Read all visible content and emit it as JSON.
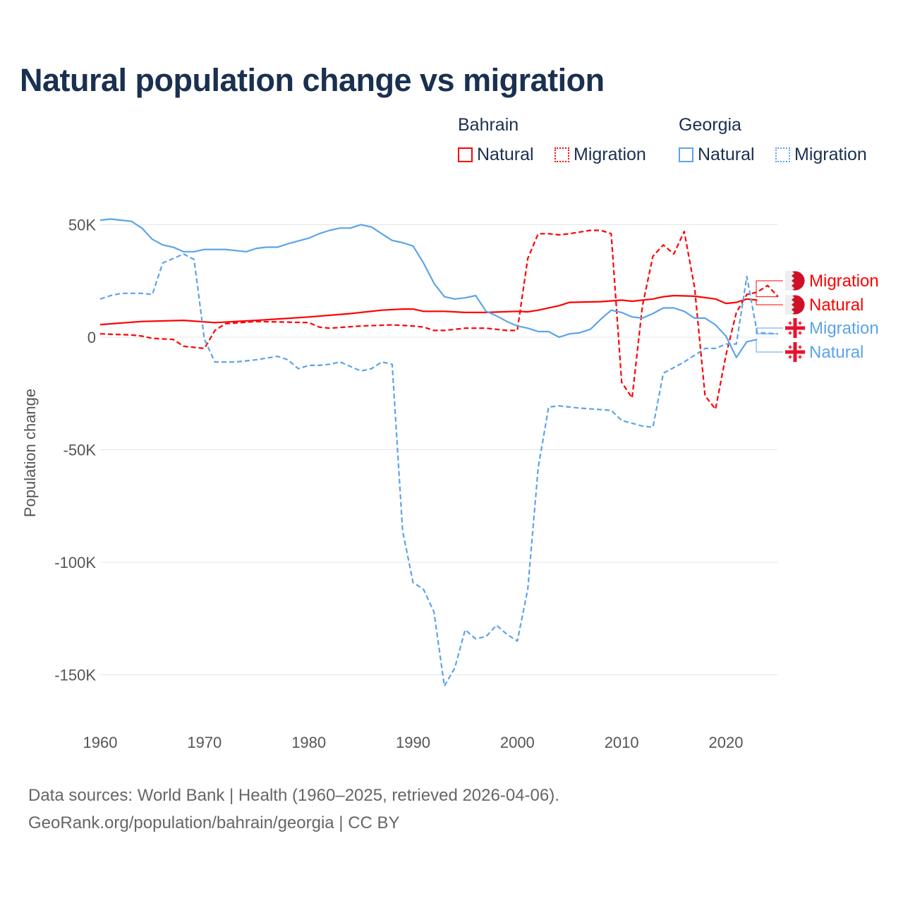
{
  "colors": {
    "bahrain": "#ff0000",
    "georgia": "#5ba4ea",
    "title": "#1a3050",
    "grid": "#e5e5e5"
  },
  "chart_data": {
    "type": "line",
    "title": "Natural population change vs migration",
    "xlabel": "",
    "ylabel": "Population change",
    "xlim": [
      1960,
      2025
    ],
    "ylim": [
      -165000,
      55000
    ],
    "x_ticks": [
      1960,
      1970,
      1980,
      1990,
      2000,
      2010,
      2020
    ],
    "x_tick_labels": [
      "1960",
      "1970",
      "1980",
      "1990",
      "2000",
      "2010",
      "2020"
    ],
    "y_ticks": [
      50000,
      0,
      -50000,
      -100000,
      -150000
    ],
    "y_tick_labels": [
      "50K",
      "0",
      "-50K",
      "-100K",
      "-150K"
    ],
    "grid": true,
    "legend": {
      "placement": "top-right",
      "groups": [
        {
          "name": "Bahrain",
          "items": [
            "Natural",
            "Migration"
          ]
        },
        {
          "name": "Georgia",
          "items": [
            "Natural",
            "Migration"
          ]
        }
      ]
    },
    "series": [
      {
        "name": "Migration",
        "country": "Bahrain",
        "flag": "bahrain-flag",
        "color": "#ff0000",
        "dash": true,
        "x": [
          1960,
          1963,
          1964,
          1965,
          1967,
          1968,
          1969,
          1970,
          1971,
          1972,
          1975,
          1980,
          1981,
          1982,
          1985,
          1988,
          1990,
          1991,
          1992,
          1993,
          1995,
          1997,
          1999,
          2000,
          2001,
          2002,
          2003,
          2004,
          2005,
          2007,
          2008,
          2009,
          2010,
          2011,
          2012,
          2013,
          2014,
          2015,
          2016,
          2017,
          2018,
          2019,
          2020,
          2021,
          2022,
          2023,
          2024,
          2025
        ],
        "y": [
          1500,
          1000,
          500,
          -500,
          -1000,
          -4000,
          -4500,
          -5000,
          3000,
          6000,
          7000,
          6500,
          4500,
          4000,
          5000,
          5500,
          5000,
          4500,
          3000,
          3000,
          4000,
          4000,
          3000,
          3000,
          35000,
          46000,
          46000,
          45500,
          46000,
          47500,
          47500,
          46000,
          -20000,
          -27000,
          14000,
          36000,
          41000,
          37000,
          47000,
          22000,
          -26000,
          -32000,
          -8000,
          11000,
          19000,
          20000,
          23000,
          18000
        ]
      },
      {
        "name": "Natural",
        "country": "Bahrain",
        "flag": "bahrain-flag",
        "color": "#ff0000",
        "dash": false,
        "x": [
          1960,
          1964,
          1968,
          1971,
          1975,
          1980,
          1984,
          1987,
          1989,
          1990,
          1991,
          1993,
          1995,
          1997,
          2000,
          2001,
          2002,
          2004,
          2005,
          2008,
          2010,
          2011,
          2013,
          2014,
          2015,
          2017,
          2019,
          2020,
          2021,
          2022,
          2023
        ],
        "y": [
          5600,
          7000,
          7500,
          6500,
          7500,
          9000,
          10500,
          12000,
          12500,
          12500,
          11500,
          11500,
          11000,
          11000,
          11500,
          11300,
          12000,
          14000,
          15500,
          15800,
          16500,
          16000,
          17000,
          18000,
          18500,
          18200,
          17000,
          15000,
          15500,
          17000,
          16500
        ]
      },
      {
        "name": "Migration",
        "country": "Georgia",
        "flag": "georgia-flag",
        "color": "#5ba4ea",
        "dash": true,
        "x": [
          1960,
          1961,
          1962,
          1963,
          1964,
          1965,
          1966,
          1967,
          1968,
          1969,
          1970,
          1971,
          1973,
          1975,
          1977,
          1978,
          1979,
          1980,
          1981,
          1982,
          1983,
          1984,
          1985,
          1986,
          1987,
          1988,
          1989,
          1990,
          1991,
          1992,
          1993,
          1994,
          1995,
          1996,
          1997,
          1998,
          1999,
          2000,
          2001,
          2002,
          2003,
          2004,
          2006,
          2009,
          2010,
          2012,
          2013,
          2014,
          2016,
          2018,
          2019,
          2020,
          2021,
          2022,
          2023,
          2025
        ],
        "y": [
          17000,
          18500,
          19500,
          19500,
          19500,
          19000,
          33000,
          35000,
          37000,
          34500,
          -1000,
          -11000,
          -11000,
          -10000,
          -8500,
          -10000,
          -14000,
          -12500,
          -12500,
          -12000,
          -11000,
          -13000,
          -15000,
          -14000,
          -11000,
          -12000,
          -86000,
          -109000,
          -112000,
          -122000,
          -155000,
          -147000,
          -130000,
          -134000,
          -133000,
          -128000,
          -132000,
          -135000,
          -112000,
          -58000,
          -31000,
          -30500,
          -31500,
          -32500,
          -37000,
          -39500,
          -40000,
          -16000,
          -11000,
          -5000,
          -5000,
          -3000,
          -3000,
          27000,
          2000,
          1500
        ]
      },
      {
        "name": "Natural",
        "country": "Georgia",
        "flag": "georgia-flag",
        "color": "#5ba4ea",
        "dash": false,
        "x": [
          1960,
          1961,
          1962,
          1963,
          1964,
          1965,
          1966,
          1967,
          1968,
          1969,
          1970,
          1972,
          1973,
          1974,
          1975,
          1976,
          1977,
          1978,
          1980,
          1981,
          1982,
          1983,
          1984,
          1985,
          1986,
          1987,
          1988,
          1989,
          1990,
          1991,
          1992,
          1993,
          1994,
          1995,
          1996,
          1997,
          1998,
          1999,
          2000,
          2001,
          2002,
          2003,
          2004,
          2005,
          2006,
          2007,
          2008,
          2009,
          2010,
          2011,
          2012,
          2013,
          2014,
          2015,
          2016,
          2017,
          2018,
          2019,
          2020,
          2021,
          2022,
          2023
        ],
        "y": [
          52000,
          52500,
          52000,
          51500,
          48500,
          43500,
          41000,
          40000,
          38000,
          38000,
          39000,
          39000,
          38500,
          38000,
          39500,
          40000,
          40000,
          41500,
          44000,
          46000,
          47500,
          48500,
          48500,
          50000,
          49000,
          46000,
          43000,
          42000,
          40500,
          33000,
          24000,
          18000,
          17000,
          17500,
          18500,
          11500,
          9500,
          7000,
          5000,
          4000,
          2500,
          2500,
          0,
          1500,
          2000,
          3500,
          8000,
          12000,
          11000,
          9000,
          8500,
          10500,
          13000,
          13000,
          11500,
          8500,
          8500,
          5500,
          500,
          -9000,
          -2000,
          -1000
        ]
      }
    ]
  },
  "footer": {
    "line1": "Data sources: World Bank | Health (1960–2025, retrieved 2026-04-06).",
    "line2": "GeoRank.org/population/bahrain/georgia | CC BY"
  }
}
